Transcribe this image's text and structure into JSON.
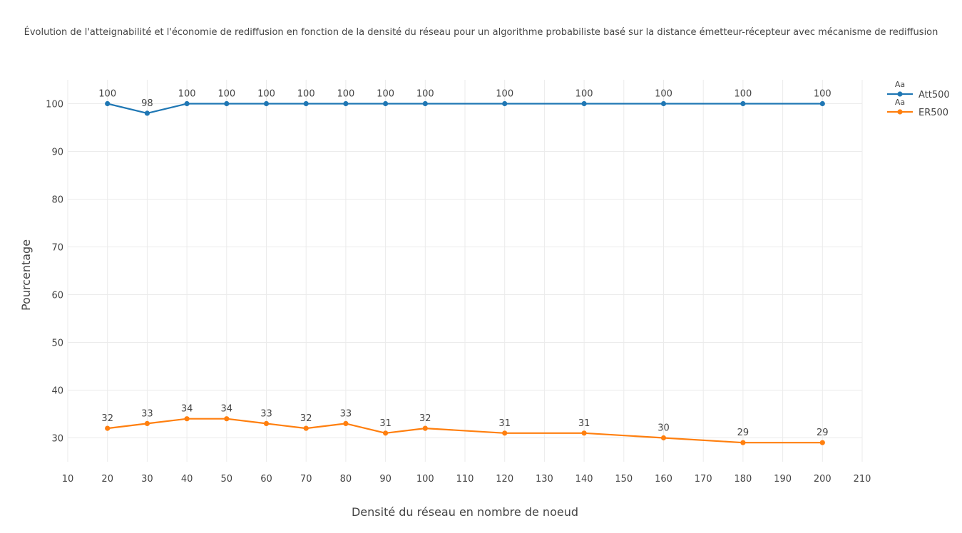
{
  "chart_data": {
    "type": "line",
    "title": "Évolution de l'atteignabilité et l'économie de rediffusion en fonction de la densité du réseau pour un algorithme probabiliste basé sur la distance émetteur-récepteur avec mécanisme de rediffusion",
    "xlabel": "Densité du réseau en nombre de noeud",
    "ylabel": "Pourcentage",
    "x": [
      20,
      30,
      40,
      50,
      60,
      70,
      80,
      90,
      100,
      120,
      140,
      160,
      180,
      200
    ],
    "xlim": [
      10,
      210
    ],
    "ylim": [
      25,
      105
    ],
    "xticks": [
      10,
      20,
      30,
      40,
      50,
      60,
      70,
      80,
      90,
      100,
      110,
      120,
      130,
      140,
      150,
      160,
      170,
      180,
      190,
      200,
      210
    ],
    "yticks": [
      30,
      40,
      50,
      60,
      70,
      80,
      90,
      100
    ],
    "grid": true,
    "legend_position": "top-right",
    "series": [
      {
        "name": "Att500",
        "color": "#1f77b4",
        "values": [
          100,
          98,
          100,
          100,
          100,
          100,
          100,
          100,
          100,
          100,
          100,
          100,
          100,
          100
        ]
      },
      {
        "name": "ER500",
        "color": "#ff7f0e",
        "values": [
          32,
          33,
          34,
          34,
          33,
          32,
          33,
          31,
          32,
          31,
          31,
          30,
          29,
          29
        ]
      }
    ],
    "legend_marker_text": "Aa"
  }
}
